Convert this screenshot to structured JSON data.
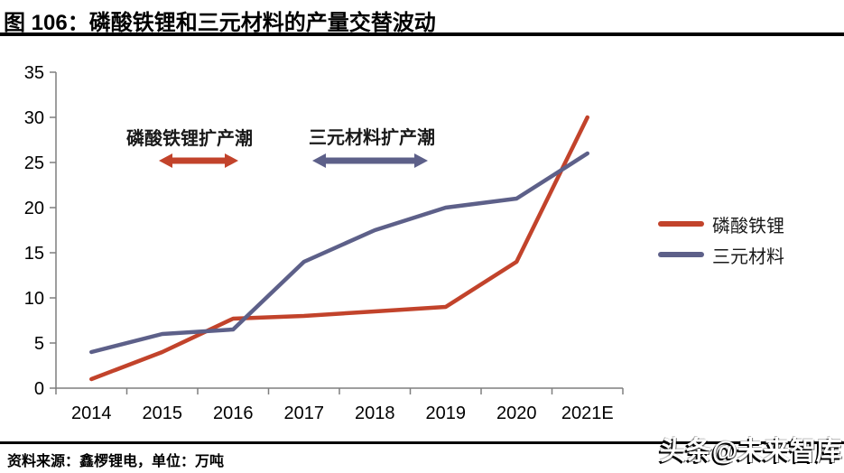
{
  "header": {
    "figure_title": "图 106：磷酸铁锂和三元材料的产量交替波动"
  },
  "chart_data": {
    "type": "line",
    "title": "磷酸铁锂和三元材料的产量交替波动",
    "unit": "万吨",
    "categories": [
      "2014",
      "2015",
      "2016",
      "2017",
      "2018",
      "2019",
      "2020",
      "2021E"
    ],
    "series": [
      {
        "name": "磷酸铁锂",
        "color": "#C2432B",
        "values": [
          1,
          4,
          7.7,
          8,
          8.5,
          9,
          14,
          30
        ]
      },
      {
        "name": "三元材料",
        "color": "#5D6089",
        "values": [
          4,
          6,
          6.5,
          14,
          17.5,
          20,
          21,
          26
        ]
      }
    ],
    "xlabel": "",
    "ylabel": "",
    "ylim": [
      0,
      35
    ],
    "yticks": [
      0,
      5,
      10,
      15,
      20,
      25,
      30,
      35
    ],
    "grid": false,
    "legend_position": "right",
    "annotations": [
      {
        "text": "磷酸铁锂扩产潮",
        "series_index": 0,
        "span": [
          "2015",
          "2016"
        ]
      },
      {
        "text": "三元材料扩产潮",
        "series_index": 1,
        "span": [
          "2017",
          "2019"
        ]
      }
    ]
  },
  "footer": {
    "source": "资料来源：鑫椤锂电，单位：万吨"
  },
  "watermark": {
    "text": "头条@未来智库"
  },
  "colors": {
    "axis": "#7f7f7f",
    "tick_label": "#000000",
    "rule": "#000000"
  }
}
